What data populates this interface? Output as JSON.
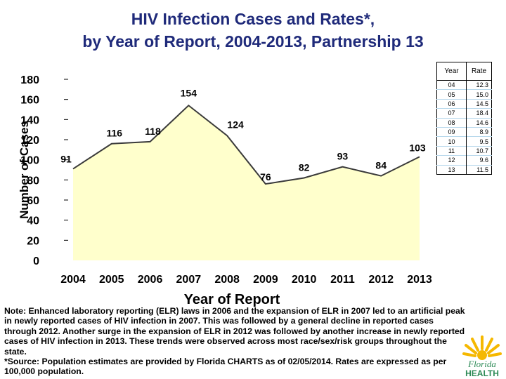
{
  "title": {
    "line1": "HIV Infection Cases and Rates*,",
    "line2": "by Year of Report, 2004-2013, Partnership 13"
  },
  "chart_data": {
    "type": "area",
    "title": "HIV Infection Cases and Rates*, by Year of Report, 2004-2013, Partnership 13",
    "xlabel": "Year of Report",
    "ylabel": "Number of Cases",
    "categories": [
      "2004",
      "2005",
      "2006",
      "2007",
      "2008",
      "2009",
      "2010",
      "2011",
      "2012",
      "2013"
    ],
    "values": [
      91,
      116,
      118,
      154,
      124,
      76,
      82,
      93,
      84,
      103
    ],
    "ylim": [
      0,
      180
    ],
    "yticks": [
      0,
      20,
      40,
      60,
      80,
      100,
      120,
      140,
      160,
      180
    ],
    "fill_color": "#ffffcc",
    "line_color": "#3a3a3a"
  },
  "rate_table": {
    "headers": {
      "year": "Year",
      "rate": "Rate"
    },
    "rows": [
      {
        "year": "04",
        "rate": "12.3"
      },
      {
        "year": "05",
        "rate": "15.0"
      },
      {
        "year": "06",
        "rate": "14.5"
      },
      {
        "year": "07",
        "rate": "18.4"
      },
      {
        "year": "08",
        "rate": "14.6"
      },
      {
        "year": "09",
        "rate": "8.9"
      },
      {
        "year": "10",
        "rate": "9.5"
      },
      {
        "year": "11",
        "rate": "10.7"
      },
      {
        "year": "12",
        "rate": "9.6"
      },
      {
        "year": "13",
        "rate": "11.5"
      }
    ]
  },
  "note": {
    "line1": "Note:  Enhanced laboratory reporting (ELR) laws in 2006 and the expansion of ELR in 2007 led to an artificial peak in newly reported cases of HIV infection in 2007.  This was followed by a general decline in reported cases through 2012.  Another surge in the expansion of ELR in 2012 was followed by another increase in newly reported cases of  HIV infection in 2013.  These trends were observed across most race/sex/risk groups throughout the state.",
    "line2": "*Source: Population estimates are provided by Florida CHARTS as of 02/05/2014. Rates are expressed as per 100,000 population."
  },
  "logo": {
    "word1": "Florida",
    "word2": "HEALTH"
  },
  "colors": {
    "title": "#1f2a7a",
    "logo_text": "#2e8b57",
    "sun": "#f5b800"
  }
}
